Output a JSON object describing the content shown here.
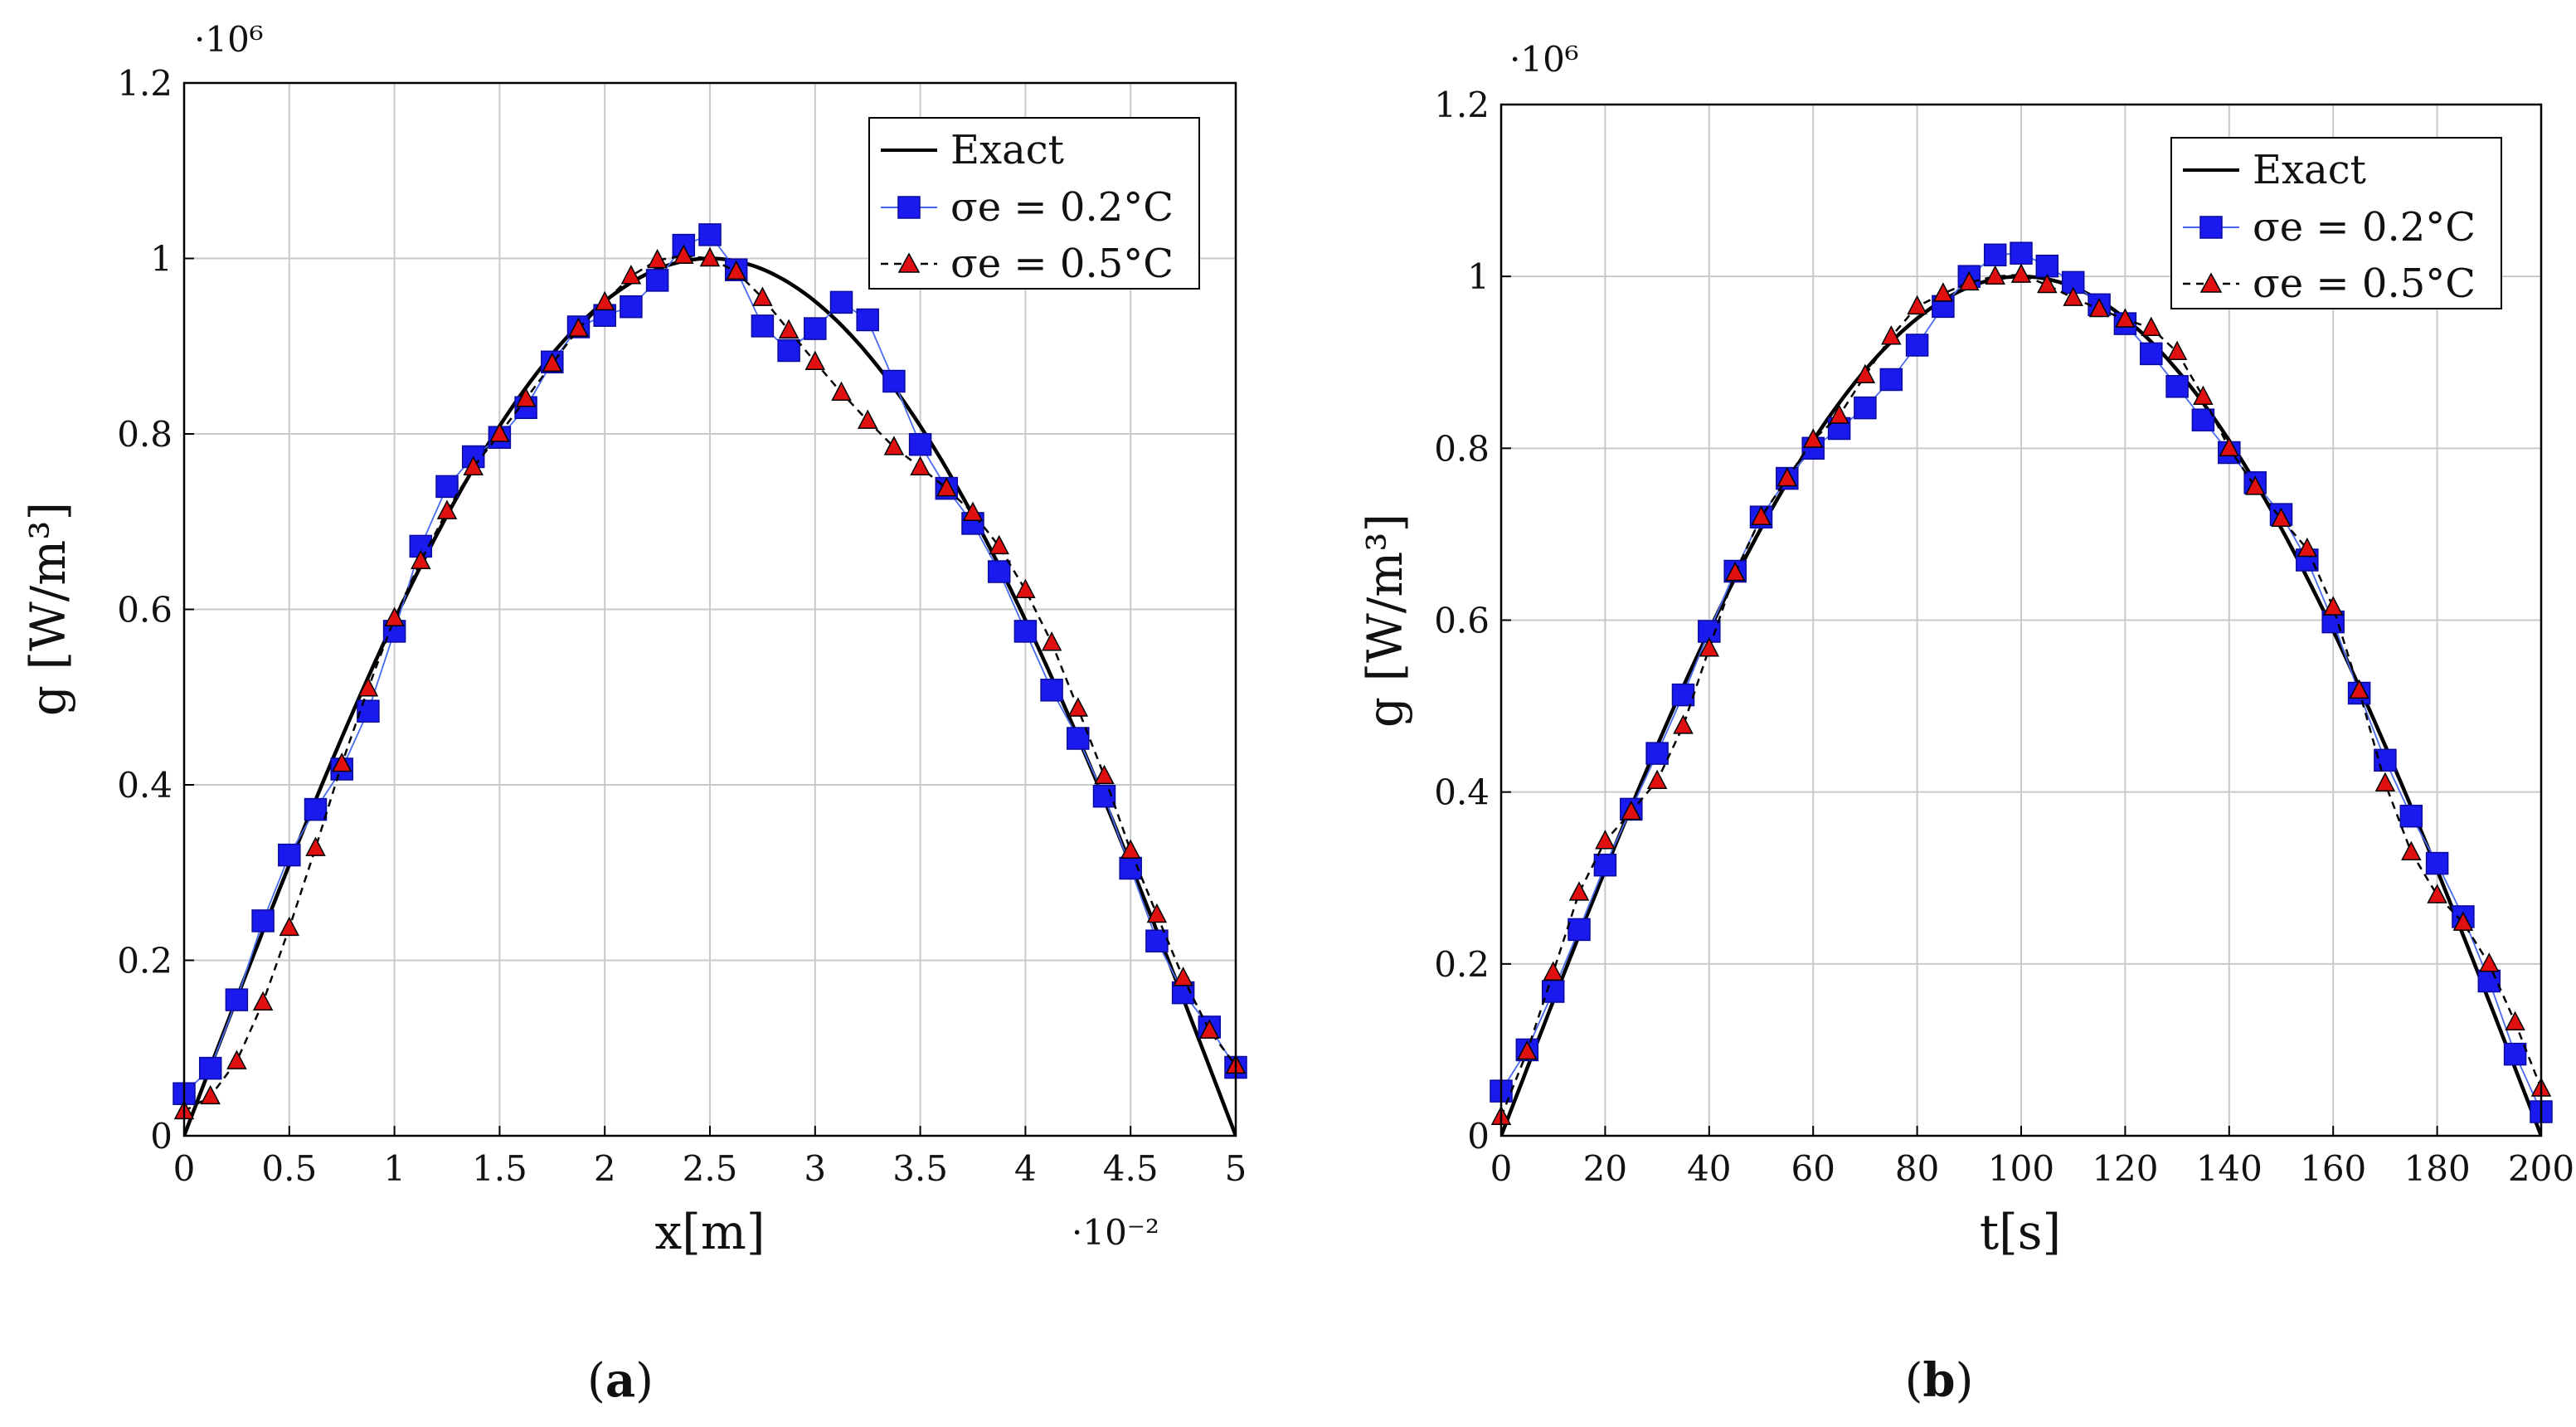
{
  "figure": {
    "captions": [
      {
        "open": "(",
        "letter": "a",
        "close": ")"
      },
      {
        "open": "(",
        "letter": "b",
        "close": ")"
      }
    ]
  },
  "chart_data": [
    {
      "type": "line",
      "panel": "a",
      "xlabel": "x[m]",
      "ylabel": "g [W/m³]",
      "xlim": [
        0,
        5
      ],
      "ylim": [
        0,
        1.2
      ],
      "x_scale_label": "·10⁻²",
      "y_scale_label": "·10⁶",
      "xticks": [
        "0",
        "0.5",
        "1",
        "1.5",
        "2",
        "2.5",
        "3",
        "3.5",
        "4",
        "4.5",
        "5"
      ],
      "yticks": [
        "0",
        "0.2",
        "0.4",
        "0.6",
        "0.8",
        "1",
        "1.2"
      ],
      "grid": true,
      "legend_position": "top-right",
      "series": [
        {
          "name": "Exact",
          "style": "solid-black",
          "x": [
            0,
            0.25,
            0.5,
            0.75,
            1,
            1.25,
            1.5,
            1.75,
            2,
            2.25,
            2.5,
            2.75,
            3,
            3.25,
            3.5,
            3.75,
            4,
            4.25,
            4.5,
            4.75,
            5
          ],
          "values": [
            0,
            0.156,
            0.309,
            0.454,
            0.588,
            0.707,
            0.809,
            0.891,
            0.951,
            0.988,
            1,
            0.988,
            0.951,
            0.891,
            0.809,
            0.707,
            0.588,
            0.454,
            0.309,
            0.156,
            0
          ]
        },
        {
          "name": "σe = 0.2°C",
          "style": "blue-square",
          "x": [
            0,
            0.125,
            0.25,
            0.375,
            0.5,
            0.625,
            0.75,
            0.875,
            1,
            1.125,
            1.25,
            1.375,
            1.5,
            1.625,
            1.75,
            1.875,
            2,
            2.125,
            2.25,
            2.375,
            2.5,
            2.625,
            2.75,
            2.875,
            3,
            3.125,
            3.25,
            3.375,
            3.5,
            3.625,
            3.75,
            3.875,
            4,
            4.125,
            4.25,
            4.375,
            4.5,
            4.625,
            4.75,
            4.875,
            5
          ],
          "values": [
            0.048,
            0.077,
            0.155,
            0.245,
            0.32,
            0.372,
            0.418,
            0.484,
            0.575,
            0.672,
            0.74,
            0.774,
            0.796,
            0.83,
            0.882,
            0.922,
            0.935,
            0.945,
            0.975,
            1.015,
            1.027,
            0.987,
            0.923,
            0.895,
            0.92,
            0.95,
            0.93,
            0.86,
            0.788,
            0.738,
            0.698,
            0.643,
            0.575,
            0.508,
            0.453,
            0.387,
            0.305,
            0.222,
            0.163,
            0.124,
            0.078
          ]
        },
        {
          "name": "σe = 0.5°C",
          "style": "red-triangle-dashed",
          "x": [
            0,
            0.125,
            0.25,
            0.375,
            0.5,
            0.625,
            0.75,
            0.875,
            1,
            1.125,
            1.25,
            1.375,
            1.5,
            1.625,
            1.75,
            1.875,
            2,
            2.125,
            2.25,
            2.375,
            2.5,
            2.625,
            2.75,
            2.875,
            3,
            3.125,
            3.25,
            3.375,
            3.5,
            3.625,
            3.75,
            3.875,
            4,
            4.125,
            4.25,
            4.375,
            4.5,
            4.625,
            4.75,
            4.875,
            5
          ],
          "values": [
            0.028,
            0.045,
            0.085,
            0.152,
            0.237,
            0.328,
            0.424,
            0.51,
            0.59,
            0.655,
            0.712,
            0.762,
            0.8,
            0.84,
            0.88,
            0.92,
            0.95,
            0.98,
            0.998,
            1.003,
            1,
            0.985,
            0.955,
            0.918,
            0.882,
            0.847,
            0.815,
            0.785,
            0.762,
            0.738,
            0.71,
            0.672,
            0.622,
            0.562,
            0.487,
            0.41,
            0.325,
            0.252,
            0.18,
            0.12,
            0.08
          ]
        }
      ]
    },
    {
      "type": "line",
      "panel": "b",
      "xlabel": "t[s]",
      "ylabel": "g [W/m³]",
      "xlim": [
        0,
        200
      ],
      "ylim": [
        0,
        1.2
      ],
      "y_scale_label": "·10⁶",
      "xticks": [
        "0",
        "20",
        "40",
        "60",
        "80",
        "100",
        "120",
        "140",
        "160",
        "180",
        "200"
      ],
      "yticks": [
        "0",
        "0.2",
        "0.4",
        "0.6",
        "0.8",
        "1",
        "1.2"
      ],
      "grid": true,
      "legend_position": "top-right",
      "series": [
        {
          "name": "Exact",
          "style": "solid-black",
          "x": [
            0,
            10,
            20,
            30,
            40,
            50,
            60,
            70,
            80,
            90,
            100,
            110,
            120,
            130,
            140,
            150,
            160,
            170,
            180,
            190,
            200
          ],
          "values": [
            0,
            0.156,
            0.309,
            0.454,
            0.588,
            0.707,
            0.809,
            0.891,
            0.951,
            0.988,
            1,
            0.988,
            0.951,
            0.891,
            0.809,
            0.707,
            0.588,
            0.454,
            0.309,
            0.156,
            0
          ]
        },
        {
          "name": "σe = 0.2°C",
          "style": "blue-square",
          "x": [
            0,
            5,
            10,
            15,
            20,
            25,
            30,
            35,
            40,
            45,
            50,
            55,
            60,
            65,
            70,
            75,
            80,
            85,
            90,
            95,
            100,
            105,
            110,
            115,
            120,
            125,
            130,
            135,
            140,
            145,
            150,
            155,
            160,
            165,
            170,
            175,
            180,
            185,
            190,
            195,
            200
          ],
          "values": [
            0.052,
            0.1,
            0.168,
            0.24,
            0.315,
            0.38,
            0.445,
            0.513,
            0.587,
            0.657,
            0.72,
            0.765,
            0.8,
            0.823,
            0.847,
            0.88,
            0.92,
            0.965,
            1,
            1.025,
            1.027,
            1.012,
            0.993,
            0.967,
            0.945,
            0.91,
            0.872,
            0.833,
            0.795,
            0.76,
            0.723,
            0.67,
            0.598,
            0.515,
            0.437,
            0.372,
            0.317,
            0.255,
            0.18,
            0.095,
            0.028
          ]
        },
        {
          "name": "σe = 0.5°C",
          "style": "red-triangle-dashed",
          "x": [
            0,
            5,
            10,
            15,
            20,
            25,
            30,
            35,
            40,
            45,
            50,
            55,
            60,
            65,
            70,
            75,
            80,
            85,
            90,
            95,
            100,
            105,
            110,
            115,
            120,
            125,
            130,
            135,
            140,
            145,
            150,
            155,
            160,
            165,
            170,
            175,
            180,
            185,
            190,
            195,
            200
          ],
          "values": [
            0.022,
            0.098,
            0.19,
            0.283,
            0.343,
            0.377,
            0.413,
            0.477,
            0.567,
            0.655,
            0.72,
            0.765,
            0.81,
            0.838,
            0.885,
            0.93,
            0.965,
            0.98,
            0.993,
            1,
            1.002,
            0.99,
            0.975,
            0.962,
            0.95,
            0.94,
            0.912,
            0.86,
            0.8,
            0.755,
            0.718,
            0.683,
            0.615,
            0.518,
            0.41,
            0.33,
            0.28,
            0.248,
            0.2,
            0.132,
            0.055
          ]
        }
      ]
    }
  ]
}
